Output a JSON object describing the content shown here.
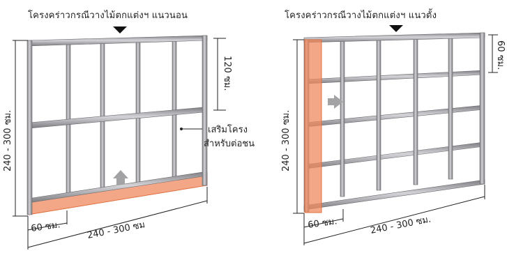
{
  "left_panel": {
    "title": "โครงคร่าวกรณีวางไม้ตกแต่งฯ แนวนอน",
    "height_label": "240 - 300 ซม.",
    "spacing_label": "120 ซม.",
    "callout_line1": "เสริมโครง",
    "callout_line2": "สำหรับต่อชน",
    "strip_label": "60 ซม.",
    "width_label": "240 - 300 ซม"
  },
  "right_panel": {
    "title": "โครงคร่าวกรณีวางไม้ตกแต่งฯ แนวตั้ง",
    "height_label": "240 - 300 ซม.",
    "spacing_label": "60 ซม.",
    "strip_label": "60 ซม.",
    "width_label": "240 - 300 ซม."
  },
  "colors": {
    "frame": "#8a8a8e",
    "frame_light": "#c4c4c8",
    "highlight": "#f08a5d",
    "arrow": "#a3a3a6"
  }
}
